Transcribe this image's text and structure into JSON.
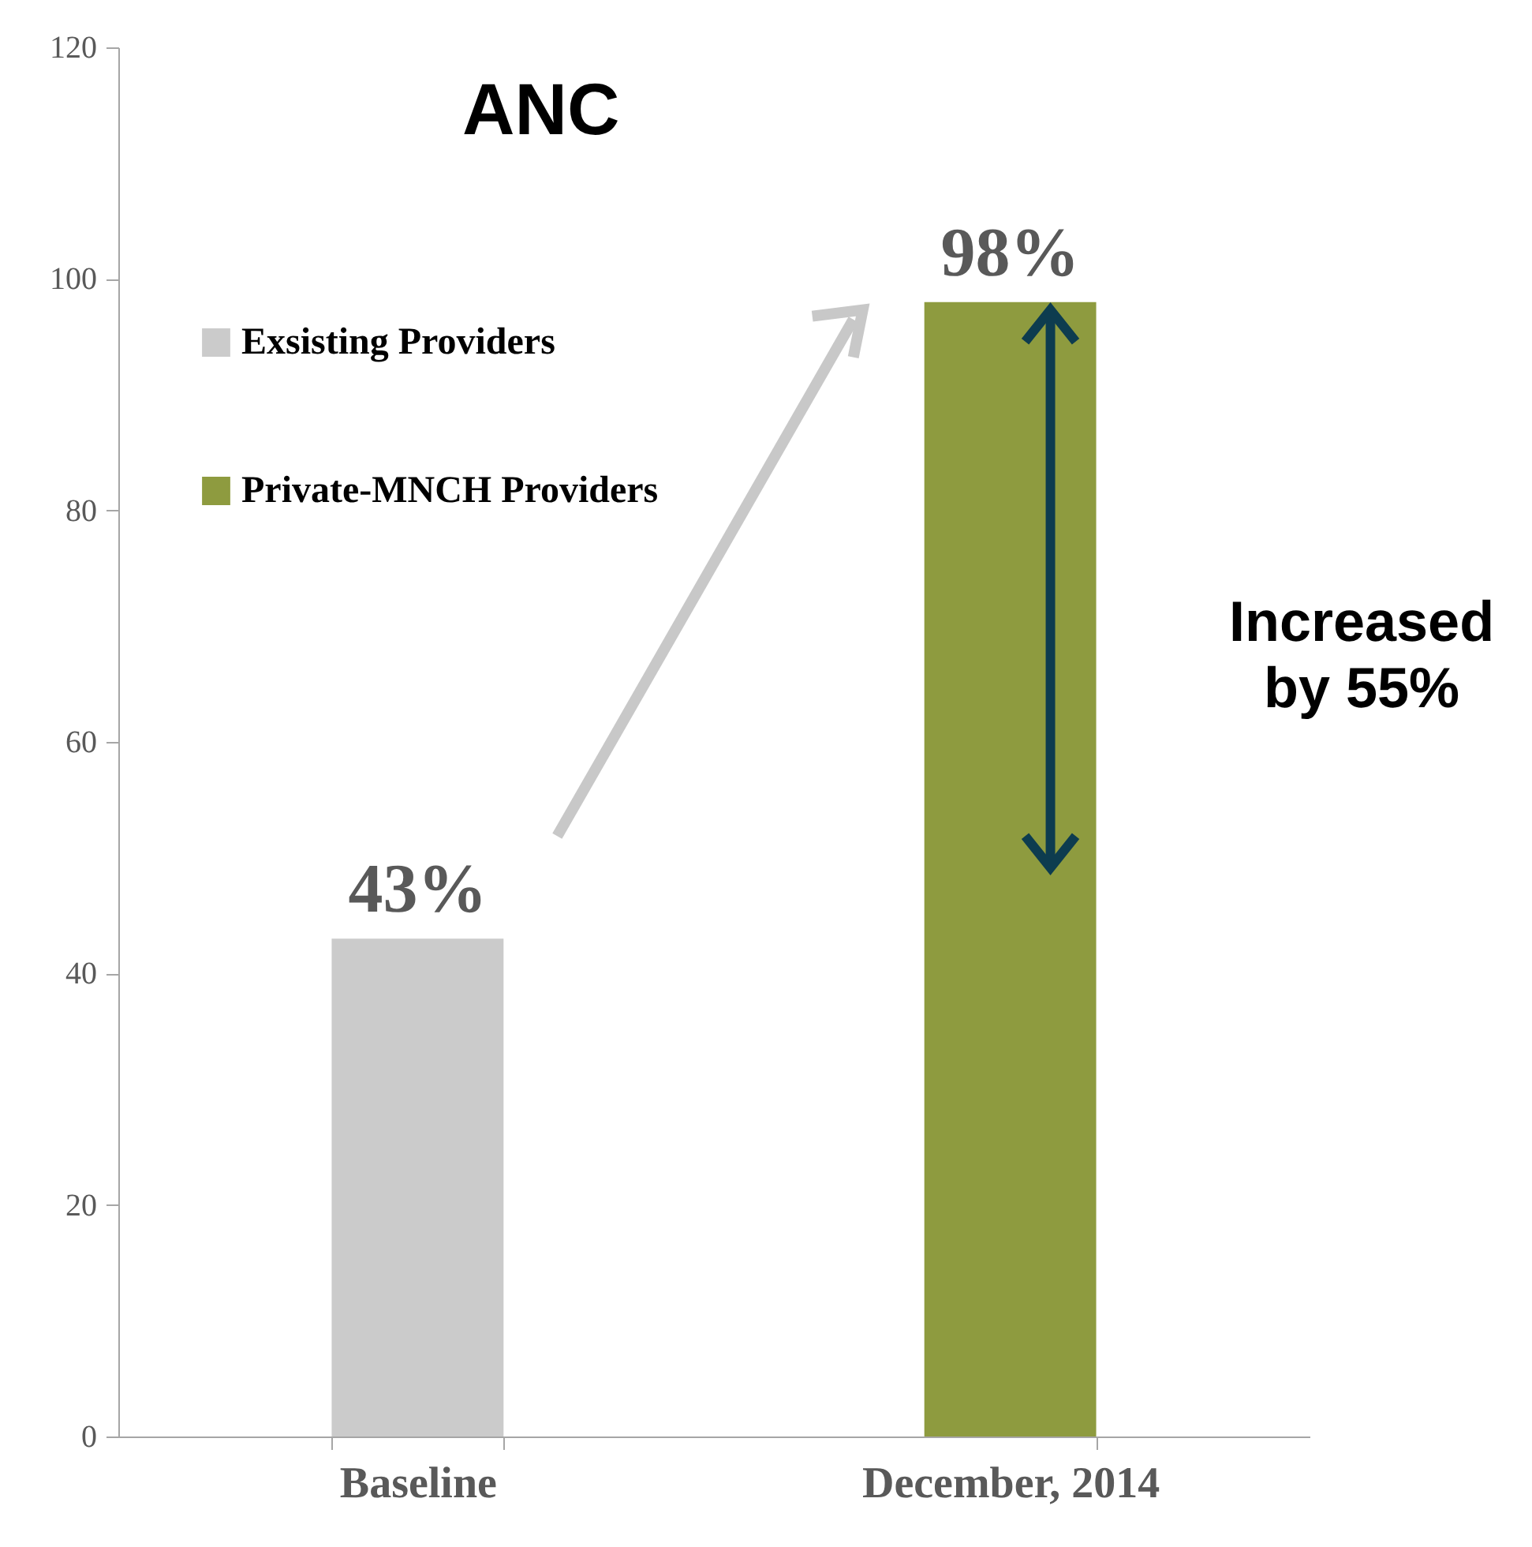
{
  "chart_data": {
    "type": "bar",
    "title": "ANC",
    "categories": [
      "Baseline",
      "December, 2014"
    ],
    "series": [
      {
        "name": "Exsisting Providers",
        "color": "#cbcbcb",
        "values": [
          43,
          null
        ],
        "value_labels": [
          "43%",
          null
        ]
      },
      {
        "name": "Private-MNCH Providers",
        "color": "#8e9b3f",
        "values": [
          null,
          98
        ],
        "value_labels": [
          null,
          "98%"
        ]
      }
    ],
    "ylim": [
      0,
      120
    ],
    "yticks": [
      0,
      20,
      40,
      60,
      80,
      100,
      120
    ],
    "grid": false,
    "legend": "top left",
    "annotations": [
      "Increased by 55%"
    ]
  }
}
